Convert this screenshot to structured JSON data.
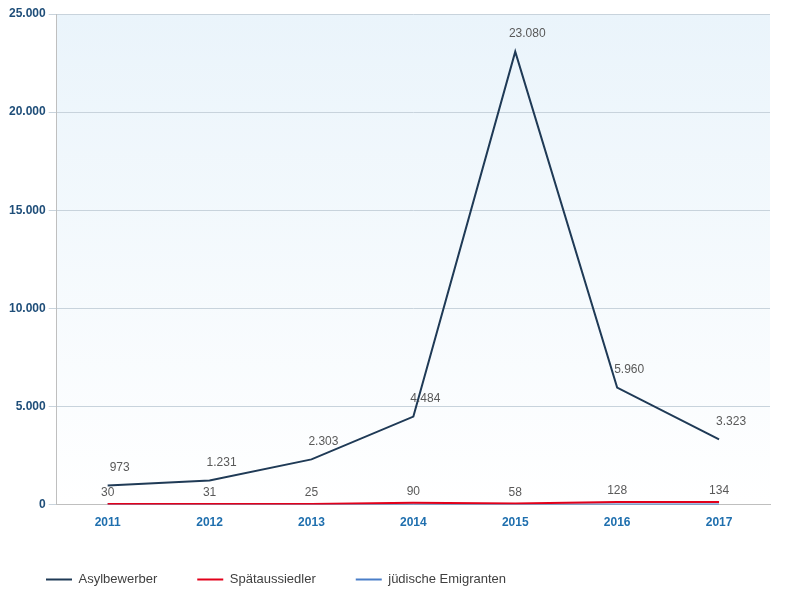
{
  "chart_data": {
    "type": "line",
    "categories": [
      "2011",
      "2012",
      "2013",
      "2014",
      "2015",
      "2016",
      "2017"
    ],
    "series": [
      {
        "name": "Asylbewerber",
        "color": "#1f3a56",
        "values": [
          973,
          1231,
          2303,
          4484,
          23080,
          5960,
          3323
        ],
        "value_labels": [
          "973",
          "1.231",
          "2.303",
          "4.484",
          "23.080",
          "5.960",
          "3.323"
        ],
        "data_labels": true
      },
      {
        "name": "Spätaussiedler",
        "color": "#e2001a",
        "values": [
          30,
          31,
          25,
          90,
          58,
          128,
          134
        ],
        "data_labels": true
      },
      {
        "name": "jüdische Emigranten",
        "color": "#4a7ec8",
        "values": [
          20,
          15,
          10,
          10,
          5,
          10,
          10
        ],
        "data_labels": false
      }
    ],
    "ylim": [
      0,
      25000
    ],
    "yticks": [
      0,
      {
        "value": 5000,
        "label": "5.000"
      },
      {
        "value": 10000,
        "label": "10.000"
      },
      {
        "value": 15000,
        "label": "15.000"
      },
      {
        "value": 20000,
        "label": "20.000"
      },
      {
        "value": 25000,
        "label": "25.000"
      }
    ],
    "grid": true,
    "legend": "bottom",
    "marker": "none",
    "line_style": "solid"
  }
}
